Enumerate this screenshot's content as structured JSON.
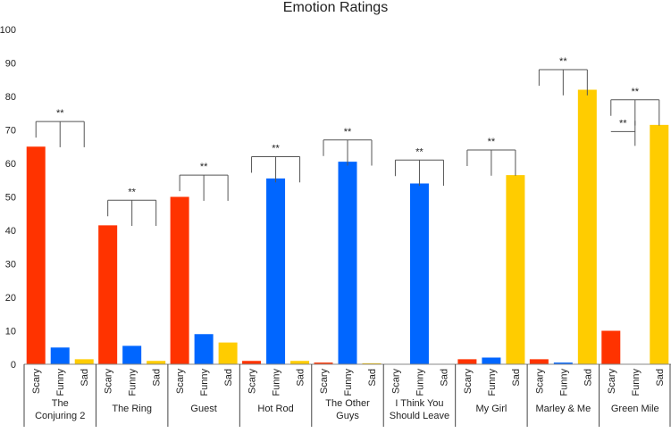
{
  "chart_data": {
    "type": "bar",
    "title": "Emotion Ratings",
    "xlabel": "",
    "ylabel": "",
    "ylim": [
      0,
      100
    ],
    "yticks": [
      0,
      10,
      20,
      30,
      40,
      50,
      60,
      70,
      80,
      90,
      100
    ],
    "grid": false,
    "legend": "none",
    "subcategories": [
      "Scary",
      "Funny",
      "Sad"
    ],
    "colors": {
      "Scary": "#ff3300",
      "Funny": "#0066ff",
      "Sad": "#ffcc00"
    },
    "groups": [
      {
        "name": "The Conjuring 2",
        "values": [
          65,
          5,
          1.5
        ]
      },
      {
        "name": "The Ring",
        "values": [
          41.5,
          5.5,
          1
        ]
      },
      {
        "name": "Guest",
        "values": [
          50,
          9,
          6.5
        ]
      },
      {
        "name": "Hot Rod",
        "values": [
          1,
          55.5,
          1
        ]
      },
      {
        "name": "The Other Guys",
        "values": [
          0.5,
          60.5,
          0.3
        ]
      },
      {
        "name": "I Think You Should Leave",
        "values": [
          0,
          54,
          0
        ]
      },
      {
        "name": "My Girl",
        "values": [
          1.5,
          2,
          56.5
        ]
      },
      {
        "name": "Marley & Me",
        "values": [
          1.5,
          0.5,
          82
        ]
      },
      {
        "name": "Green Mile",
        "values": [
          10,
          0,
          71.5
        ]
      }
    ],
    "significance": [
      {
        "group": 0,
        "type": "triple",
        "level": 72.5,
        "label": "**"
      },
      {
        "group": 1,
        "type": "triple",
        "level": 49,
        "label": "**"
      },
      {
        "group": 2,
        "type": "triple",
        "level": 56.5,
        "label": "**"
      },
      {
        "group": 3,
        "type": "triple",
        "level": 62,
        "label": "**"
      },
      {
        "group": 4,
        "type": "triple",
        "level": 67,
        "label": "**"
      },
      {
        "group": 5,
        "type": "triple",
        "level": 61,
        "label": "**"
      },
      {
        "group": 6,
        "type": "triple",
        "level": 64,
        "label": "**"
      },
      {
        "group": 7,
        "type": "triple",
        "level": 88,
        "label": "**"
      },
      {
        "group": 8,
        "type": "triple",
        "level": 79,
        "label": "**"
      },
      {
        "group": 8,
        "type": "pair",
        "level": 69.5,
        "label": "**"
      }
    ]
  }
}
